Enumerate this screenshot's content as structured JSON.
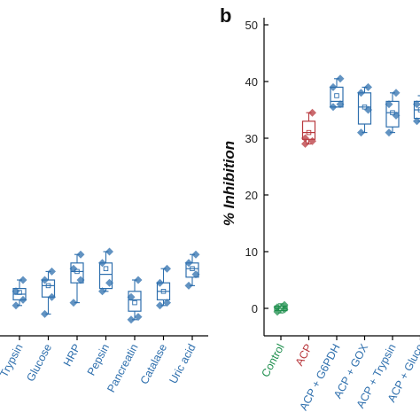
{
  "chart_data": [
    {
      "type": "box",
      "panel_label": "",
      "ylabel": "",
      "ylim": [
        -5,
        50
      ],
      "categories": [
        "Trypsin",
        "Glucose",
        "HRP",
        "Pepsin",
        "Pancreatin",
        "Catalase",
        "Uric acid"
      ],
      "category_colors": [
        "#2e6fad",
        "#2e6fad",
        "#2e6fad",
        "#2e6fad",
        "#2e6fad",
        "#2e6fad",
        "#2e6fad"
      ],
      "boxes": [
        {
          "q1": 1.5,
          "median": 2.5,
          "q3": 3.5,
          "mean": 2.8,
          "whisker_low": 0.5,
          "whisker_high": 5.0,
          "points": [
            0.5,
            1.5,
            3.0,
            5.0
          ]
        },
        {
          "q1": 2.0,
          "median": 4.0,
          "q3": 5.0,
          "mean": 4.0,
          "whisker_low": -1.0,
          "whisker_high": 6.5,
          "points": [
            -1.0,
            2.0,
            5.0,
            6.5
          ]
        },
        {
          "q1": 4.5,
          "median": 6.5,
          "q3": 8.0,
          "mean": 6.5,
          "whisker_low": 1.0,
          "whisker_high": 9.5,
          "points": [
            1.0,
            5.0,
            7.0,
            9.5
          ]
        },
        {
          "q1": 3.5,
          "median": 6.0,
          "q3": 8.0,
          "mean": 7.0,
          "whisker_low": 3.0,
          "whisker_high": 10.0,
          "points": [
            3.0,
            4.5,
            8.0,
            10.0
          ]
        },
        {
          "q1": -0.5,
          "median": 1.5,
          "q3": 3.0,
          "mean": 1.0,
          "whisker_low": -2.0,
          "whisker_high": 5.0,
          "points": [
            -2.0,
            -1.5,
            2.0,
            5.0
          ]
        },
        {
          "q1": 1.5,
          "median": 3.0,
          "q3": 4.5,
          "mean": 3.0,
          "whisker_low": 0.5,
          "whisker_high": 7.0,
          "points": [
            0.5,
            1.0,
            4.5,
            7.0
          ]
        },
        {
          "q1": 5.5,
          "median": 7.0,
          "q3": 8.0,
          "mean": 7.0,
          "whisker_low": 4.0,
          "whisker_high": 9.5,
          "points": [
            4.0,
            6.0,
            8.0,
            9.5
          ]
        }
      ]
    },
    {
      "type": "box",
      "panel_label": "b",
      "ylabel": "% Inhibition",
      "ylim": [
        -5,
        50
      ],
      "yticks": [
        0,
        10,
        20,
        30,
        40,
        50
      ],
      "categories": [
        "Control",
        "ACP",
        "ACP + G6PDH",
        "ACP + GOX",
        "ACP + Trypsin",
        "ACP + Gluco"
      ],
      "category_colors": [
        "#1f8f4e",
        "#b8383d",
        "#2e6fad",
        "#2e6fad",
        "#2e6fad",
        "#2e6fad"
      ],
      "boxes": [
        {
          "q1": -0.4,
          "median": 0.0,
          "q3": 0.4,
          "mean": 0.0,
          "whisker_low": -0.8,
          "whisker_high": 0.8,
          "points": [
            -0.6,
            -0.2,
            0.2,
            0.6
          ]
        },
        {
          "q1": 29.8,
          "median": 31.0,
          "q3": 33.0,
          "mean": 31.0,
          "whisker_low": 29.0,
          "whisker_high": 34.5,
          "points": [
            29.0,
            29.5,
            30.0,
            34.5
          ]
        },
        {
          "q1": 35.5,
          "median": 36.5,
          "q3": 39.0,
          "mean": 37.5,
          "whisker_low": 35.5,
          "whisker_high": 40.5,
          "points": [
            35.5,
            36.0,
            39.0,
            40.5
          ]
        },
        {
          "q1": 32.5,
          "median": 35.5,
          "q3": 38.0,
          "mean": 35.5,
          "whisker_low": 31.0,
          "whisker_high": 39.0,
          "points": [
            31.0,
            35.0,
            38.0,
            39.0
          ]
        },
        {
          "q1": 32.0,
          "median": 34.5,
          "q3": 36.5,
          "mean": 34.5,
          "whisker_low": 31.0,
          "whisker_high": 38.0,
          "points": [
            31.0,
            34.0,
            36.0,
            38.0
          ]
        },
        {
          "q1": 33.5,
          "median": 35.0,
          "q3": 36.5,
          "mean": 35.0,
          "whisker_low": 33.0,
          "whisker_high": 37.5,
          "points": [
            33.0,
            34.5,
            36.0,
            37.5
          ]
        }
      ]
    }
  ]
}
